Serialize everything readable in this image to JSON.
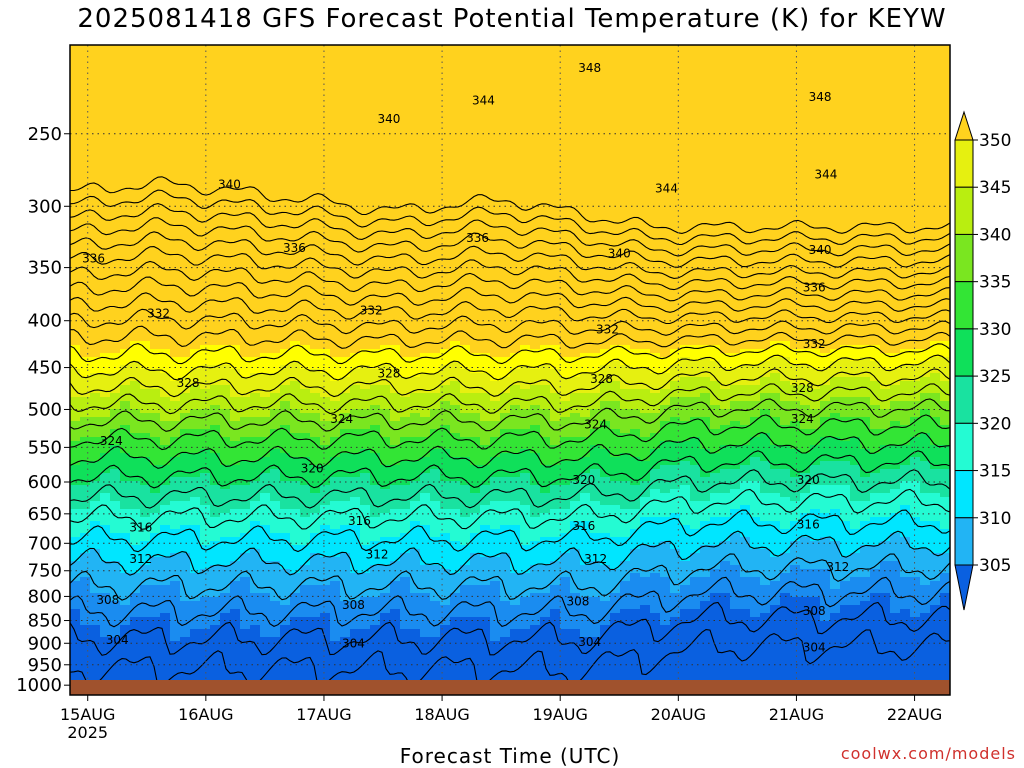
{
  "title": "2025081418 GFS Forecast Potential Temperature (K) for KEYW",
  "xlabel": "Forecast Time (UTC)",
  "credit": "coolwx.com/models",
  "chart_data": {
    "type": "heatmap",
    "title": "2025081418 GFS Forecast Potential Temperature (K) for KEYW",
    "xlabel": "Forecast Time (UTC)",
    "ylabel": "",
    "x_range_days": [
      14.85,
      22.3
    ],
    "x_ticks": [
      {
        "day": 15,
        "label": "15AUG",
        "sub": "2025"
      },
      {
        "day": 16,
        "label": "16AUG",
        "sub": ""
      },
      {
        "day": 17,
        "label": "17AUG",
        "sub": ""
      },
      {
        "day": 18,
        "label": "18AUG",
        "sub": ""
      },
      {
        "day": 19,
        "label": "19AUG",
        "sub": ""
      },
      {
        "day": 20,
        "label": "20AUG",
        "sub": ""
      },
      {
        "day": 21,
        "label": "21AUG",
        "sub": ""
      },
      {
        "day": 22,
        "label": "22AUG",
        "sub": ""
      }
    ],
    "y_axis": {
      "scale": "log",
      "reversed": true,
      "range": [
        1025,
        200
      ],
      "ticks": [
        250,
        300,
        350,
        400,
        450,
        500,
        550,
        600,
        650,
        700,
        750,
        800,
        850,
        900,
        950,
        1000
      ]
    },
    "colorbar": {
      "levels": [
        305,
        310,
        315,
        320,
        325,
        330,
        335,
        340,
        345,
        350
      ],
      "labels": [
        "305",
        "310",
        "315",
        "320",
        "325",
        "330",
        "335",
        "340",
        "345",
        "350"
      ],
      "colors": [
        "#0a60e0",
        "#1a8cf0",
        "#22b4f4",
        "#00e6ff",
        "#24fbd3",
        "#19e2a0",
        "#0fe05a",
        "#33e535",
        "#7ae620",
        "#b9ee10",
        "#e6f010",
        "#ffff00",
        "#ffd21e"
      ]
    },
    "contour_interval_K": 2,
    "series": [
      {
        "day": [
          14.85,
          16.0,
          17.0,
          18.0,
          19.0,
          20.0,
          21.0,
          22.3
        ],
        "theta_1000hPa": [
          301,
          301,
          301,
          301,
          301,
          301,
          301,
          301
        ]
      }
    ],
    "contour_labels": [
      {
        "value": "304",
        "day": 15.25,
        "p": 893
      },
      {
        "value": "304",
        "day": 17.25,
        "p": 900
      },
      {
        "value": "304",
        "day": 19.25,
        "p": 897
      },
      {
        "value": "304",
        "day": 21.15,
        "p": 910
      },
      {
        "value": "308",
        "day": 15.17,
        "p": 807
      },
      {
        "value": "308",
        "day": 17.25,
        "p": 817
      },
      {
        "value": "308",
        "day": 19.15,
        "p": 810
      },
      {
        "value": "308",
        "day": 21.15,
        "p": 830
      },
      {
        "value": "312",
        "day": 15.45,
        "p": 728
      },
      {
        "value": "312",
        "day": 17.45,
        "p": 720
      },
      {
        "value": "312",
        "day": 19.3,
        "p": 728
      },
      {
        "value": "312",
        "day": 21.35,
        "p": 743
      },
      {
        "value": "316",
        "day": 15.45,
        "p": 673
      },
      {
        "value": "316",
        "day": 17.3,
        "p": 662
      },
      {
        "value": "316",
        "day": 19.2,
        "p": 670
      },
      {
        "value": "316",
        "day": 21.1,
        "p": 668
      },
      {
        "value": "320",
        "day": 16.9,
        "p": 580
      },
      {
        "value": "320",
        "day": 19.2,
        "p": 597
      },
      {
        "value": "320",
        "day": 21.1,
        "p": 597
      },
      {
        "value": "324",
        "day": 15.2,
        "p": 541
      },
      {
        "value": "324",
        "day": 17.15,
        "p": 512
      },
      {
        "value": "324",
        "day": 19.3,
        "p": 519
      },
      {
        "value": "324",
        "day": 21.05,
        "p": 512
      },
      {
        "value": "328",
        "day": 15.85,
        "p": 468
      },
      {
        "value": "328",
        "day": 17.55,
        "p": 457
      },
      {
        "value": "328",
        "day": 19.35,
        "p": 463
      },
      {
        "value": "328",
        "day": 21.05,
        "p": 474
      },
      {
        "value": "332",
        "day": 15.6,
        "p": 393
      },
      {
        "value": "332",
        "day": 17.4,
        "p": 390
      },
      {
        "value": "332",
        "day": 19.4,
        "p": 409
      },
      {
        "value": "332",
        "day": 21.15,
        "p": 424
      },
      {
        "value": "336",
        "day": 15.05,
        "p": 342
      },
      {
        "value": "336",
        "day": 16.75,
        "p": 333
      },
      {
        "value": "336",
        "day": 18.3,
        "p": 325
      },
      {
        "value": "336",
        "day": 21.15,
        "p": 368
      },
      {
        "value": "340",
        "day": 16.2,
        "p": 284
      },
      {
        "value": "340",
        "day": 17.55,
        "p": 241
      },
      {
        "value": "340",
        "day": 19.5,
        "p": 338
      },
      {
        "value": "340",
        "day": 21.2,
        "p": 335
      },
      {
        "value": "344",
        "day": 18.35,
        "p": 230
      },
      {
        "value": "344",
        "day": 19.9,
        "p": 287
      },
      {
        "value": "344",
        "day": 21.25,
        "p": 277
      },
      {
        "value": "348",
        "day": 19.25,
        "p": 212
      },
      {
        "value": "348",
        "day": 21.2,
        "p": 228
      }
    ]
  }
}
